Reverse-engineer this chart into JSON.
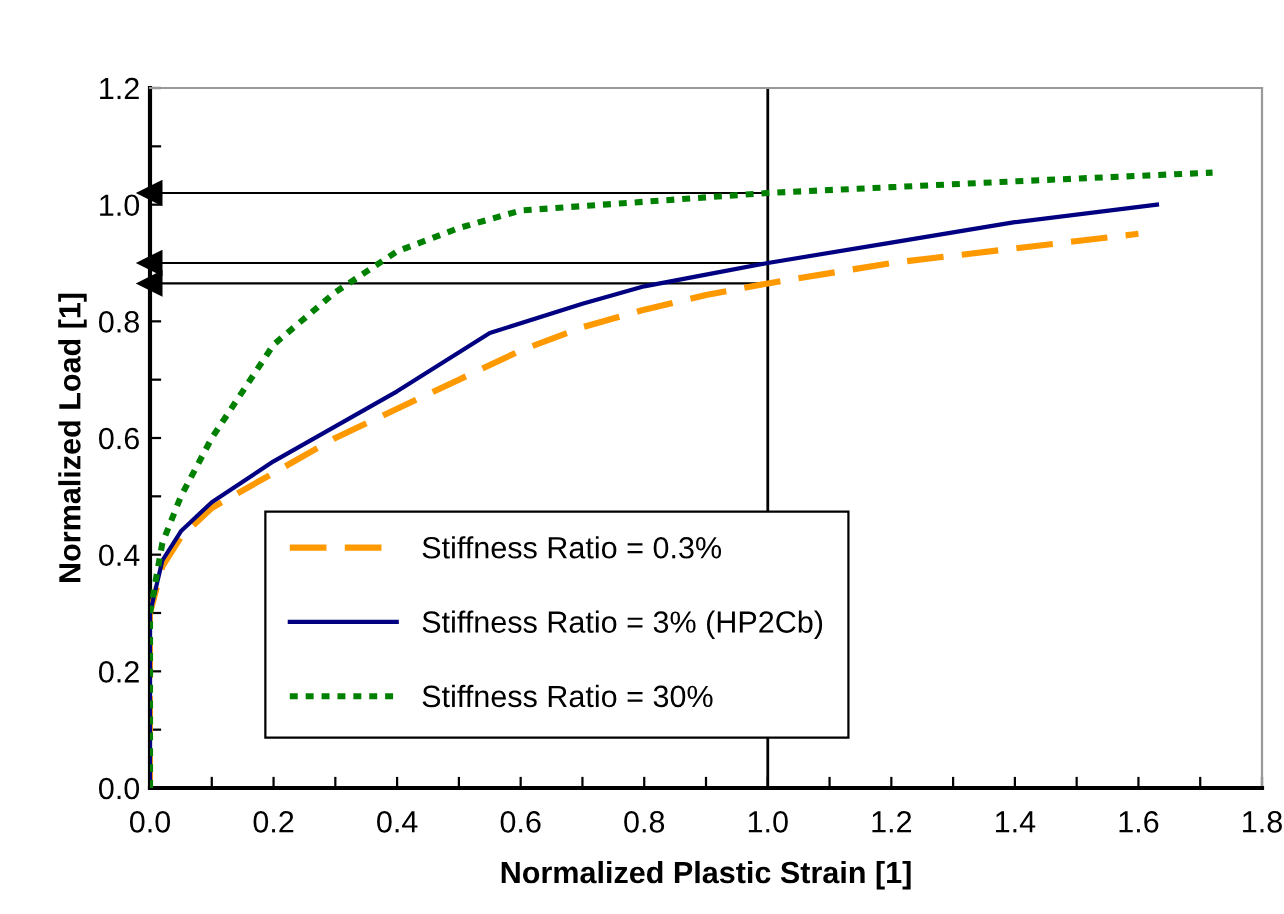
{
  "chart_data": {
    "type": "line",
    "xlabel": "Normalized Plastic Strain [1]",
    "ylabel": "Normalized Load [1]",
    "xlim": [
      0,
      1.8
    ],
    "ylim": [
      0,
      1.2
    ],
    "xticks": [
      {
        "value": 0,
        "label": "0.0"
      },
      {
        "value": 0.1,
        "label": null
      },
      0.2,
      {
        "value": 0.3,
        "label": null
      },
      0.4,
      {
        "value": 0.5,
        "label": null
      },
      0.6,
      {
        "value": 0.7,
        "label": null
      },
      0.8,
      {
        "value": 0.9,
        "label": null
      },
      {
        "value": 1,
        "label": "1.0"
      },
      {
        "value": 1.1,
        "label": null
      },
      1.2,
      {
        "value": 1.3,
        "label": null
      },
      1.4,
      {
        "value": 1.5,
        "label": null
      },
      1.6,
      {
        "value": 1.7,
        "label": null
      },
      1.8
    ],
    "yticks": [
      {
        "value": 0,
        "label": "0.0"
      },
      {
        "value": 0.1,
        "label": null
      },
      0.2,
      {
        "value": 0.3,
        "label": null
      },
      0.4,
      {
        "value": 0.5,
        "label": null
      },
      0.6,
      {
        "value": 0.7,
        "label": null
      },
      0.8,
      {
        "value": 0.9,
        "label": null
      },
      {
        "value": 1,
        "label": "1.0"
      },
      {
        "value": 1.1,
        "label": null
      },
      1.2
    ],
    "grid": false,
    "legend": "bottom left",
    "marker": "none",
    "series": [
      {
        "name": "Stiffness Ratio = 0.3%",
        "color": "#ff9900",
        "line_style": "dashed",
        "x": [
          0,
          0,
          0.02,
          0.05,
          0.1,
          0.2,
          0.3,
          0.4,
          0.5,
          0.6,
          0.7,
          0.8,
          0.9,
          1.0,
          1.2,
          1.4,
          1.6
        ],
        "values": [
          0,
          0.3,
          0.38,
          0.43,
          0.48,
          0.54,
          0.6,
          0.65,
          0.7,
          0.75,
          0.79,
          0.82,
          0.845,
          0.865,
          0.9,
          0.925,
          0.95
        ]
      },
      {
        "name": "Stiffness Ratio = 3% (HP2Cb)",
        "color": "#000080",
        "line_style": "solid",
        "x": [
          0,
          0,
          0.02,
          0.05,
          0.1,
          0.2,
          0.3,
          0.4,
          0.55,
          0.7,
          0.8,
          0.9,
          1.0,
          1.2,
          1.4,
          1.63
        ],
        "values": [
          0,
          0.3,
          0.39,
          0.44,
          0.49,
          0.56,
          0.62,
          0.68,
          0.78,
          0.83,
          0.86,
          0.88,
          0.9,
          0.935,
          0.97,
          1.0
        ]
      },
      {
        "name": "Stiffness Ratio = 30%",
        "color": "#008000",
        "line_style": "dotted",
        "x": [
          0,
          0,
          0.02,
          0.05,
          0.1,
          0.15,
          0.2,
          0.3,
          0.4,
          0.5,
          0.6,
          0.8,
          1.0,
          1.2,
          1.4,
          1.72
        ],
        "values": [
          0,
          0.3,
          0.42,
          0.5,
          0.6,
          0.68,
          0.76,
          0.85,
          0.92,
          0.96,
          0.99,
          1.005,
          1.02,
          1.03,
          1.04,
          1.055
        ]
      }
    ],
    "ref_lines": [
      {
        "axis": "x",
        "value": 1.0,
        "color": "#000000"
      },
      {
        "axis": "y",
        "value": 1.02,
        "color": "#000000"
      },
      {
        "axis": "y",
        "value": 0.9,
        "color": "#000000"
      },
      {
        "axis": "y",
        "value": 0.865,
        "color": "#000000"
      }
    ]
  }
}
